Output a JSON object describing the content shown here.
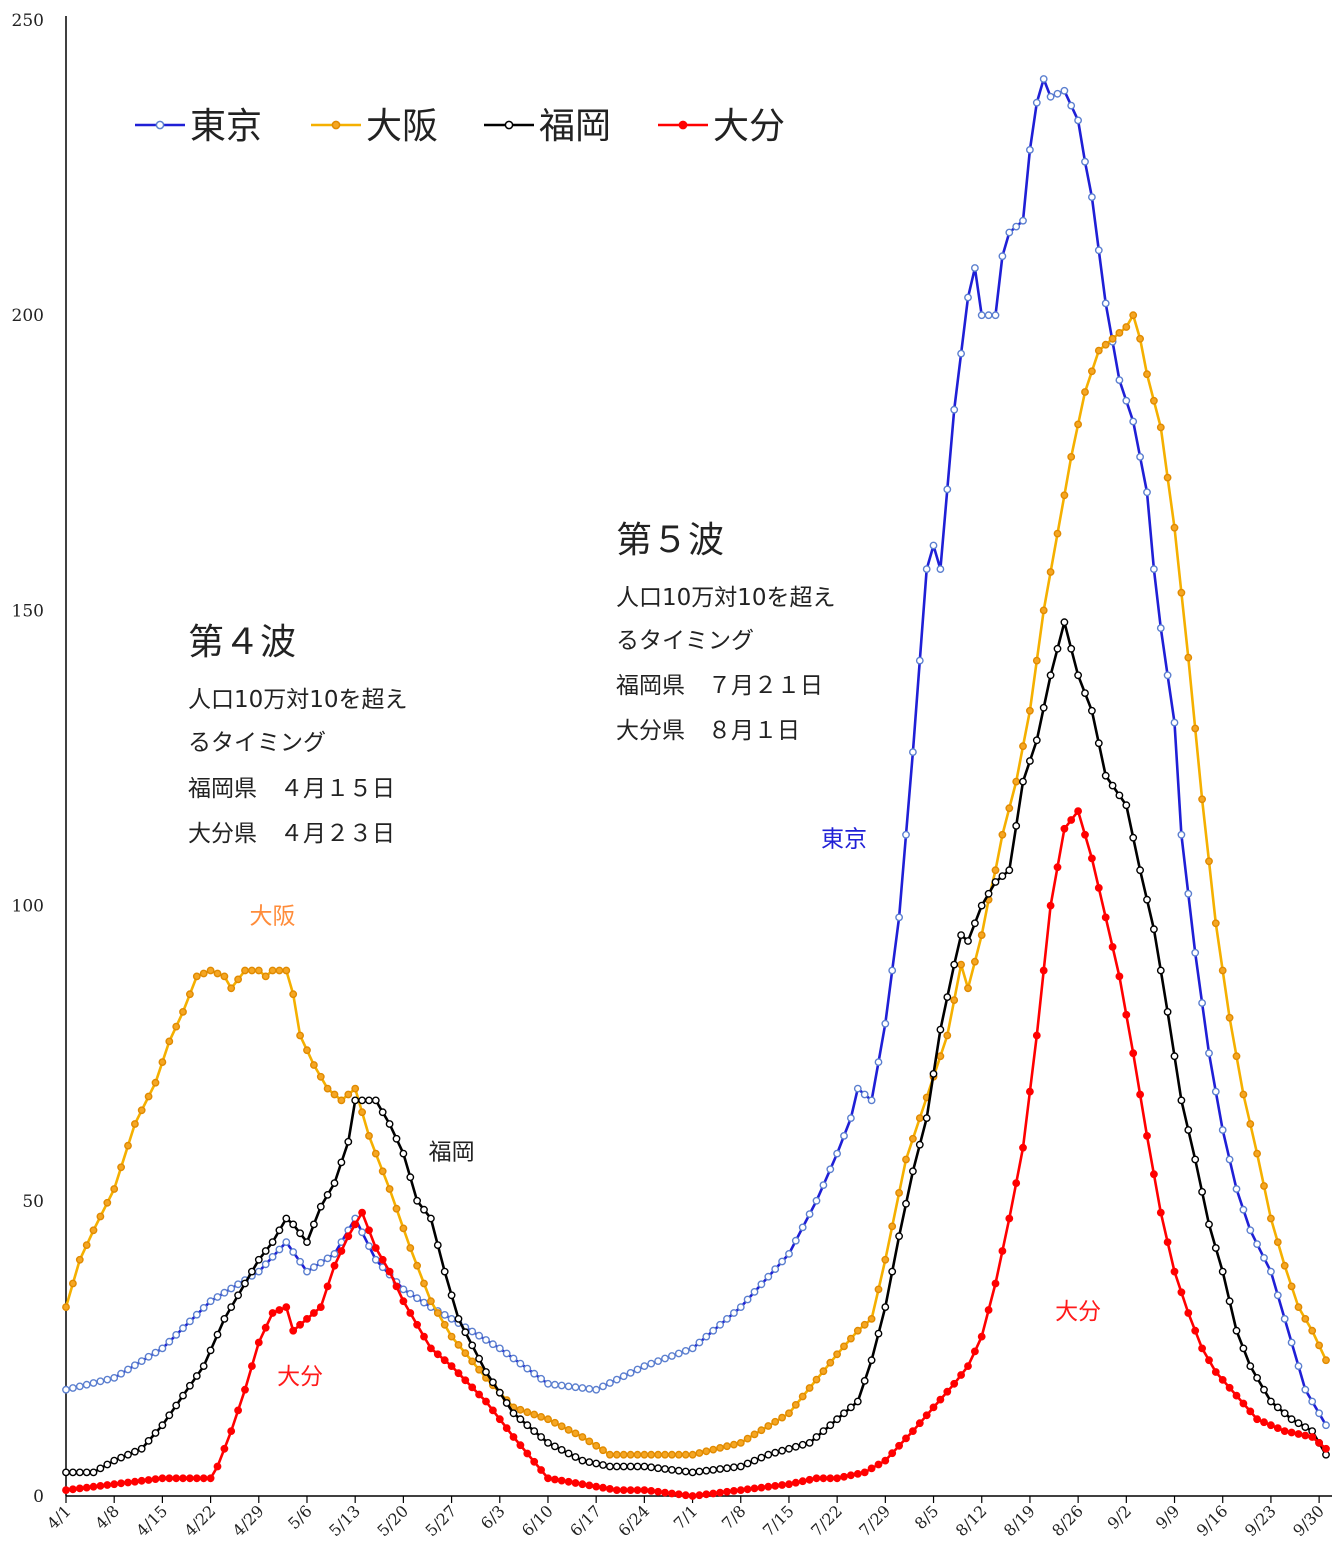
{
  "chart_data": {
    "type": "line",
    "ylim": [
      0,
      250
    ],
    "y_ticks": [
      "0",
      "50",
      "100",
      "150",
      "200",
      "250"
    ],
    "x_start": "4/1",
    "x_end": "10/1",
    "x_ticks": [
      "4/1",
      "4/8",
      "4/15",
      "4/22",
      "4/29",
      "5/6",
      "5/13",
      "5/20",
      "5/27",
      "6/3",
      "6/10",
      "6/17",
      "6/24",
      "7/1",
      "7/8",
      "7/15",
      "7/22",
      "7/29",
      "8/5",
      "8/12",
      "8/19",
      "8/26",
      "9/2",
      "9/9",
      "9/16",
      "9/23",
      "9/30"
    ],
    "legend": {
      "position": "top-left"
    },
    "series": [
      {
        "name": "東京",
        "color": "#1f1fd6",
        "marker_fill": "#ffffff",
        "marker_stroke": "#5b7fcf",
        "points": [
          [
            "4/1",
            18
          ],
          [
            "4/8",
            20
          ],
          [
            "4/15",
            25
          ],
          [
            "4/22",
            33
          ],
          [
            "4/29",
            38
          ],
          [
            "5/3",
            43
          ],
          [
            "5/6",
            38
          ],
          [
            "5/10",
            41
          ],
          [
            "5/13",
            47
          ],
          [
            "5/16",
            40
          ],
          [
            "5/20",
            35
          ],
          [
            "5/24",
            32
          ],
          [
            "5/27",
            30
          ],
          [
            "6/3",
            25
          ],
          [
            "6/10",
            19
          ],
          [
            "6/17",
            18
          ],
          [
            "6/24",
            22
          ],
          [
            "7/1",
            25
          ],
          [
            "7/8",
            32
          ],
          [
            "7/15",
            41
          ],
          [
            "7/19",
            50
          ],
          [
            "7/22",
            58
          ],
          [
            "7/24",
            64
          ],
          [
            "7/25",
            69
          ],
          [
            "7/27",
            67
          ],
          [
            "7/29",
            80
          ],
          [
            "7/31",
            98
          ],
          [
            "8/2",
            126
          ],
          [
            "8/4",
            157
          ],
          [
            "8/5",
            161
          ],
          [
            "8/6",
            157
          ],
          [
            "8/8",
            184
          ],
          [
            "8/10",
            203
          ],
          [
            "8/11",
            208
          ],
          [
            "8/12",
            200
          ],
          [
            "8/14",
            200
          ],
          [
            "8/15",
            210
          ],
          [
            "8/16",
            214
          ],
          [
            "8/18",
            216
          ],
          [
            "8/19",
            228
          ],
          [
            "8/20",
            236
          ],
          [
            "8/21",
            240
          ],
          [
            "8/22",
            237
          ],
          [
            "8/24",
            238
          ],
          [
            "8/26",
            233
          ],
          [
            "8/27",
            226
          ],
          [
            "8/28",
            220
          ],
          [
            "8/30",
            202
          ],
          [
            "9/1",
            189
          ],
          [
            "9/3",
            182
          ],
          [
            "9/5",
            170
          ],
          [
            "9/6",
            157
          ],
          [
            "9/7",
            147
          ],
          [
            "9/9",
            131
          ],
          [
            "9/10",
            112
          ],
          [
            "9/12",
            92
          ],
          [
            "9/14",
            75
          ],
          [
            "9/16",
            62
          ],
          [
            "9/18",
            52
          ],
          [
            "9/20",
            45
          ],
          [
            "9/23",
            38
          ],
          [
            "9/26",
            26
          ],
          [
            "9/28",
            18
          ],
          [
            "10/1",
            12
          ]
        ]
      },
      {
        "name": "大阪",
        "color": "#f5b000",
        "marker_fill": "#f5a623",
        "marker_stroke": "#e08a00",
        "points": [
          [
            "4/1",
            32
          ],
          [
            "4/3",
            40
          ],
          [
            "4/5",
            45
          ],
          [
            "4/8",
            52
          ],
          [
            "4/11",
            63
          ],
          [
            "4/14",
            70
          ],
          [
            "4/16",
            77
          ],
          [
            "4/18",
            82
          ],
          [
            "4/20",
            88
          ],
          [
            "4/22",
            89
          ],
          [
            "4/24",
            88
          ],
          [
            "4/25",
            86
          ],
          [
            "4/27",
            89
          ],
          [
            "4/29",
            89
          ],
          [
            "4/30",
            88
          ],
          [
            "5/1",
            89
          ],
          [
            "5/3",
            89
          ],
          [
            "5/4",
            85
          ],
          [
            "5/5",
            78
          ],
          [
            "5/7",
            73
          ],
          [
            "5/9",
            69
          ],
          [
            "5/11",
            67
          ],
          [
            "5/13",
            69
          ],
          [
            "5/15",
            61
          ],
          [
            "5/18",
            52
          ],
          [
            "5/21",
            42
          ],
          [
            "5/24",
            33
          ],
          [
            "5/27",
            27
          ],
          [
            "6/1",
            20
          ],
          [
            "6/5",
            15
          ],
          [
            "6/10",
            13
          ],
          [
            "6/15",
            10
          ],
          [
            "6/19",
            7
          ],
          [
            "6/24",
            7
          ],
          [
            "7/1",
            7
          ],
          [
            "7/8",
            9
          ],
          [
            "7/15",
            14
          ],
          [
            "7/22",
            24
          ],
          [
            "7/25",
            28
          ],
          [
            "7/27",
            30
          ],
          [
            "7/29",
            40
          ],
          [
            "8/1",
            57
          ],
          [
            "8/3",
            64
          ],
          [
            "8/5",
            71
          ],
          [
            "8/7",
            78
          ],
          [
            "8/8",
            84
          ],
          [
            "8/9",
            90
          ],
          [
            "8/10",
            86
          ],
          [
            "8/12",
            95
          ],
          [
            "8/13",
            101
          ],
          [
            "8/14",
            106
          ],
          [
            "8/15",
            112
          ],
          [
            "8/17",
            121
          ],
          [
            "8/19",
            133
          ],
          [
            "8/21",
            150
          ],
          [
            "8/23",
            163
          ],
          [
            "8/25",
            176
          ],
          [
            "8/27",
            187
          ],
          [
            "8/29",
            194
          ],
          [
            "9/1",
            197
          ],
          [
            "9/2",
            198
          ],
          [
            "9/3",
            200
          ],
          [
            "9/4",
            196
          ],
          [
            "9/5",
            190
          ],
          [
            "9/7",
            181
          ],
          [
            "9/9",
            164
          ],
          [
            "9/11",
            142
          ],
          [
            "9/13",
            118
          ],
          [
            "9/15",
            97
          ],
          [
            "9/17",
            81
          ],
          [
            "9/19",
            68
          ],
          [
            "9/21",
            58
          ],
          [
            "9/23",
            47
          ],
          [
            "9/25",
            39
          ],
          [
            "9/27",
            32
          ],
          [
            "9/29",
            28
          ],
          [
            "10/1",
            23
          ]
        ]
      },
      {
        "name": "福岡",
        "color": "#000000",
        "marker_fill": "#ffffff",
        "marker_stroke": "#000000",
        "points": [
          [
            "4/1",
            4
          ],
          [
            "4/5",
            4
          ],
          [
            "4/8",
            6
          ],
          [
            "4/12",
            8
          ],
          [
            "4/15",
            12
          ],
          [
            "4/18",
            17
          ],
          [
            "4/21",
            22
          ],
          [
            "4/24",
            30
          ],
          [
            "4/27",
            36
          ],
          [
            "4/29",
            40
          ],
          [
            "5/1",
            43
          ],
          [
            "5/3",
            47
          ],
          [
            "5/4",
            46
          ],
          [
            "5/6",
            43
          ],
          [
            "5/8",
            49
          ],
          [
            "5/10",
            53
          ],
          [
            "5/12",
            60
          ],
          [
            "5/13",
            67
          ],
          [
            "5/16",
            67
          ],
          [
            "5/18",
            63
          ],
          [
            "5/20",
            58
          ],
          [
            "5/22",
            50
          ],
          [
            "5/24",
            47
          ],
          [
            "5/26",
            38
          ],
          [
            "5/28",
            30
          ],
          [
            "6/1",
            21
          ],
          [
            "6/5",
            14
          ],
          [
            "6/10",
            9
          ],
          [
            "6/15",
            6
          ],
          [
            "6/19",
            5
          ],
          [
            "6/24",
            5
          ],
          [
            "7/1",
            4
          ],
          [
            "7/8",
            5
          ],
          [
            "7/12",
            7
          ],
          [
            "7/15",
            8
          ],
          [
            "7/18",
            9
          ],
          [
            "7/22",
            13
          ],
          [
            "7/25",
            16
          ],
          [
            "7/27",
            23
          ],
          [
            "7/29",
            32
          ],
          [
            "7/31",
            44
          ],
          [
            "8/2",
            55
          ],
          [
            "8/4",
            64
          ],
          [
            "8/6",
            79
          ],
          [
            "8/8",
            90
          ],
          [
            "8/9",
            95
          ],
          [
            "8/10",
            94
          ],
          [
            "8/12",
            100
          ],
          [
            "8/14",
            104
          ],
          [
            "8/16",
            106
          ],
          [
            "8/18",
            121
          ],
          [
            "8/20",
            128
          ],
          [
            "8/22",
            139
          ],
          [
            "8/24",
            148
          ],
          [
            "8/26",
            139
          ],
          [
            "8/28",
            133
          ],
          [
            "8/30",
            122
          ],
          [
            "9/2",
            117
          ],
          [
            "9/4",
            106
          ],
          [
            "9/6",
            96
          ],
          [
            "9/8",
            82
          ],
          [
            "9/10",
            67
          ],
          [
            "9/12",
            57
          ],
          [
            "9/14",
            46
          ],
          [
            "9/16",
            38
          ],
          [
            "9/18",
            28
          ],
          [
            "9/20",
            22
          ],
          [
            "9/23",
            16
          ],
          [
            "9/26",
            13
          ],
          [
            "9/29",
            11
          ],
          [
            "10/1",
            7
          ]
        ]
      },
      {
        "name": "大分",
        "color": "#ff0000",
        "marker_fill": "#ff0000",
        "marker_stroke": "#ff0000",
        "points": [
          [
            "4/1",
            1
          ],
          [
            "4/8",
            2
          ],
          [
            "4/15",
            3
          ],
          [
            "4/22",
            3
          ],
          [
            "4/23",
            5
          ],
          [
            "4/25",
            11
          ],
          [
            "4/27",
            18
          ],
          [
            "4/29",
            26
          ],
          [
            "5/1",
            31
          ],
          [
            "5/3",
            32
          ],
          [
            "5/4",
            28
          ],
          [
            "5/6",
            30
          ],
          [
            "5/8",
            32
          ],
          [
            "5/10",
            39
          ],
          [
            "5/12",
            44
          ],
          [
            "5/14",
            48
          ],
          [
            "5/16",
            42
          ],
          [
            "5/18",
            38
          ],
          [
            "5/20",
            33
          ],
          [
            "5/22",
            29
          ],
          [
            "5/24",
            25
          ],
          [
            "5/27",
            22
          ],
          [
            "6/1",
            16
          ],
          [
            "6/5",
            10
          ],
          [
            "6/10",
            3
          ],
          [
            "6/15",
            2
          ],
          [
            "6/20",
            1
          ],
          [
            "6/24",
            1
          ],
          [
            "7/1",
            0
          ],
          [
            "7/8",
            1
          ],
          [
            "7/15",
            2
          ],
          [
            "7/19",
            3
          ],
          [
            "7/22",
            3
          ],
          [
            "7/26",
            4
          ],
          [
            "7/29",
            6
          ],
          [
            "8/2",
            11
          ],
          [
            "8/5",
            15
          ],
          [
            "8/8",
            19
          ],
          [
            "8/10",
            22
          ],
          [
            "8/12",
            27
          ],
          [
            "8/14",
            36
          ],
          [
            "8/16",
            47
          ],
          [
            "8/18",
            59
          ],
          [
            "8/20",
            78
          ],
          [
            "8/22",
            100
          ],
          [
            "8/24",
            113
          ],
          [
            "8/26",
            116
          ],
          [
            "8/28",
            108
          ],
          [
            "8/30",
            98
          ],
          [
            "9/1",
            88
          ],
          [
            "9/3",
            75
          ],
          [
            "9/5",
            61
          ],
          [
            "9/7",
            48
          ],
          [
            "9/9",
            38
          ],
          [
            "9/11",
            31
          ],
          [
            "9/13",
            25
          ],
          [
            "9/15",
            21
          ],
          [
            "9/18",
            17
          ],
          [
            "9/21",
            13
          ],
          [
            "9/25",
            11
          ],
          [
            "9/29",
            10
          ],
          [
            "10/1",
            8
          ]
        ]
      }
    ],
    "annotations": {
      "wave4": {
        "title": "第４波",
        "lines": [
          "人口10万対10を超え",
          "るタイミング",
          "福岡県　４月１５日",
          "大分県　４月２３日"
        ]
      },
      "wave5": {
        "title": "第５波",
        "lines": [
          "人口10万対10を超え",
          "るタイミング",
          "福岡県　７月２１日",
          "大分県　８月１日"
        ]
      },
      "series_labels": [
        {
          "text": "大阪",
          "color": "#ff8c3a",
          "date": "5/1",
          "value": 97
        },
        {
          "text": "福岡",
          "color": "#222222",
          "date": "5/27",
          "value": 57
        },
        {
          "text": "大分",
          "color": "#ff1a1a",
          "date": "5/5",
          "value": 19
        },
        {
          "text": "東京",
          "color": "#1f1fd6",
          "date": "7/23",
          "value": 110
        },
        {
          "text": "大分",
          "color": "#ff1a1a",
          "date": "8/26",
          "value": 30
        }
      ]
    }
  }
}
